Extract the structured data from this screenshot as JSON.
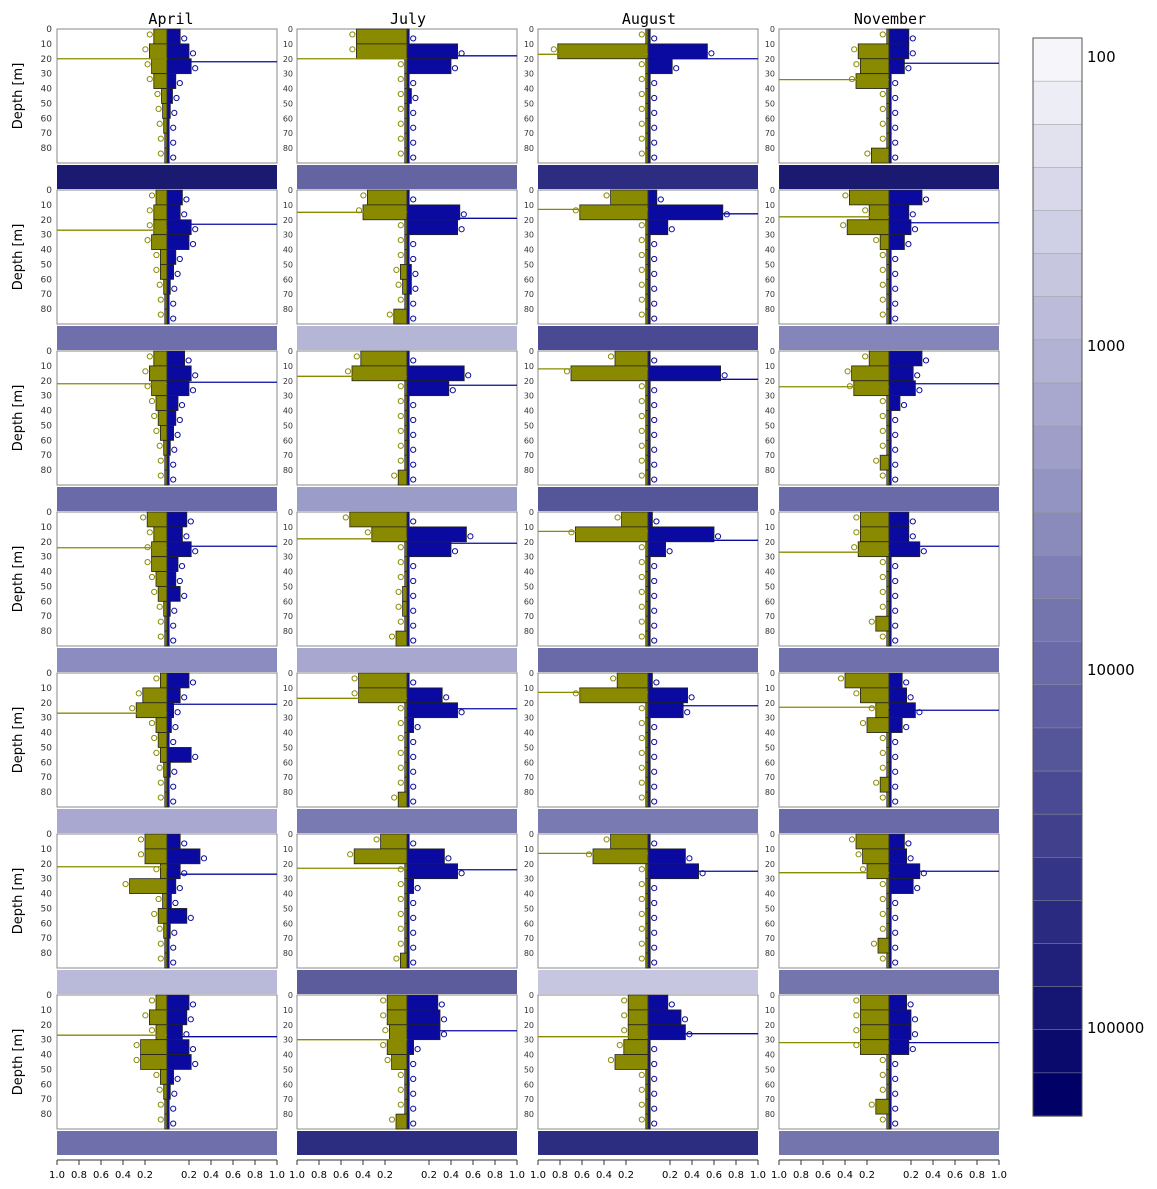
{
  "chart_data": {
    "type": "bar",
    "layout": "7 rows x 4 columns of mirrored depth-profile bar panels, each with a colour strip beneath",
    "columns": [
      "April",
      "July",
      "August",
      "November"
    ],
    "ylabel": "Depth [m]",
    "depth_ticks": [
      "0",
      "10",
      "20",
      "30",
      "40",
      "50",
      "60",
      "70",
      "80"
    ],
    "depth_range": [
      0,
      90
    ],
    "x_ticks": [
      "1.0",
      "0.8",
      "0.6",
      "0.4",
      "0.2",
      "0.2",
      "0.4",
      "0.6",
      "0.8",
      "1.0"
    ],
    "x_range": [
      -1.0,
      1.0
    ],
    "depth_bins": [
      0,
      10,
      20,
      30,
      40,
      50,
      60,
      70,
      80
    ],
    "series_colors": {
      "left": "#8a8a00",
      "right": "#0a0aa0"
    },
    "colorbar": {
      "labels": [
        "100",
        "1000",
        "10000",
        "100000"
      ],
      "scale": "log",
      "colors": [
        "#f6f6fa",
        "#ededf5",
        "#e2e2ef",
        "#d8d8ea",
        "#cfcfe5",
        "#c6c6df",
        "#bcbcda",
        "#b2b2d4",
        "#a8a8ce",
        "#9e9ec8",
        "#9494c2",
        "#8a8abb",
        "#7f7fb5",
        "#7575ae",
        "#6a6aa8",
        "#5f5fa1",
        "#55559a",
        "#4a4a94",
        "#40408d",
        "#353587",
        "#2a2a80",
        "#20207a",
        "#151573",
        "#0a0a6c",
        "#000066"
      ]
    },
    "panels": [
      [
        {
          "left": [
            0.12,
            0.16,
            0.14,
            0.12,
            0.05,
            0.04,
            0.03,
            0.02,
            0.02
          ],
          "right": [
            0.12,
            0.2,
            0.22,
            0.08,
            0.05,
            0.03,
            0.02,
            0.02,
            0.02
          ],
          "left_line": 20,
          "right_line": 22,
          "strip": "#1a1a70"
        },
        {
          "left": [
            0.1,
            0.12,
            0.12,
            0.14,
            0.06,
            0.06,
            0.03,
            0.02,
            0.02
          ],
          "right": [
            0.14,
            0.12,
            0.22,
            0.2,
            0.08,
            0.06,
            0.03,
            0.02,
            0.02
          ],
          "left_line": 27,
          "right_line": 23,
          "strip": "#6f6fac"
        },
        {
          "left": [
            0.12,
            0.16,
            0.14,
            0.1,
            0.08,
            0.06,
            0.03,
            0.02,
            0.02
          ],
          "right": [
            0.16,
            0.22,
            0.2,
            0.1,
            0.08,
            0.06,
            0.03,
            0.02,
            0.02
          ],
          "left_line": 22,
          "right_line": 21,
          "strip": "#6a6aa8"
        },
        {
          "left": [
            0.18,
            0.12,
            0.14,
            0.14,
            0.1,
            0.08,
            0.03,
            0.02,
            0.02
          ],
          "right": [
            0.18,
            0.14,
            0.22,
            0.1,
            0.08,
            0.12,
            0.03,
            0.02,
            0.02
          ],
          "left_line": 24,
          "right_line": 23,
          "strip": "#8c8cc0"
        },
        {
          "left": [
            0.06,
            0.22,
            0.28,
            0.1,
            0.08,
            0.06,
            0.03,
            0.02,
            0.02
          ],
          "right": [
            0.2,
            0.12,
            0.06,
            0.04,
            0.02,
            0.22,
            0.03,
            0.02,
            0.02
          ],
          "left_line": 27,
          "right_line": 21,
          "strip": "#a8a8d0"
        },
        {
          "left": [
            0.2,
            0.2,
            0.06,
            0.34,
            0.04,
            0.08,
            0.03,
            0.02,
            0.02
          ],
          "right": [
            0.12,
            0.3,
            0.12,
            0.08,
            0.04,
            0.18,
            0.03,
            0.02,
            0.02
          ],
          "left_line": 22,
          "right_line": 27,
          "strip": "#b9b9da"
        },
        {
          "left": [
            0.1,
            0.16,
            0.1,
            0.24,
            0.24,
            0.06,
            0.03,
            0.02,
            0.02
          ],
          "right": [
            0.2,
            0.18,
            0.14,
            0.2,
            0.22,
            0.06,
            0.03,
            0.02,
            0.02
          ],
          "left_line": 27,
          "right_line": 28,
          "strip": "#6f6fac"
        }
      ],
      [
        {
          "left": [
            0.46,
            0.46,
            0.02,
            0.02,
            0.02,
            0.02,
            0.02,
            0.02,
            0.02
          ],
          "right": [
            0.02,
            0.46,
            0.4,
            0.02,
            0.04,
            0.02,
            0.02,
            0.02,
            0.02
          ],
          "left_line": 20,
          "right_line": 18,
          "strip": "#6464a3"
        },
        {
          "left": [
            0.36,
            0.4,
            0.02,
            0.02,
            0.02,
            0.06,
            0.04,
            0.02,
            0.12
          ],
          "right": [
            0.02,
            0.48,
            0.46,
            0.02,
            0.02,
            0.04,
            0.04,
            0.02,
            0.02
          ],
          "left_line": 15,
          "right_line": 19,
          "strip": "#b5b5d6"
        },
        {
          "left": [
            0.42,
            0.5,
            0.02,
            0.02,
            0.02,
            0.02,
            0.02,
            0.02,
            0.08
          ],
          "right": [
            0.02,
            0.52,
            0.38,
            0.02,
            0.02,
            0.02,
            0.02,
            0.02,
            0.02
          ],
          "left_line": 17,
          "right_line": 23,
          "strip": "#9c9cc8"
        },
        {
          "left": [
            0.52,
            0.32,
            0.02,
            0.02,
            0.02,
            0.04,
            0.04,
            0.02,
            0.1
          ],
          "right": [
            0.02,
            0.54,
            0.4,
            0.02,
            0.02,
            0.02,
            0.02,
            0.02,
            0.02
          ],
          "left_line": 18,
          "right_line": 21,
          "strip": "#a7a7cf"
        },
        {
          "left": [
            0.44,
            0.44,
            0.02,
            0.02,
            0.02,
            0.02,
            0.02,
            0.02,
            0.08
          ],
          "right": [
            0.02,
            0.32,
            0.46,
            0.06,
            0.02,
            0.02,
            0.02,
            0.02,
            0.02
          ],
          "left_line": 17,
          "right_line": 24,
          "strip": "#7a7ab2"
        },
        {
          "left": [
            0.24,
            0.48,
            0.02,
            0.02,
            0.02,
            0.02,
            0.02,
            0.02,
            0.06
          ],
          "right": [
            0.02,
            0.34,
            0.46,
            0.06,
            0.02,
            0.02,
            0.02,
            0.02,
            0.02
          ],
          "left_line": 23,
          "right_line": 24,
          "strip": "#5c5c9d"
        },
        {
          "left": [
            0.18,
            0.18,
            0.16,
            0.18,
            0.14,
            0.02,
            0.02,
            0.02,
            0.1
          ],
          "right": [
            0.28,
            0.3,
            0.3,
            0.06,
            0.02,
            0.02,
            0.02,
            0.02,
            0.02
          ],
          "left_line": 30,
          "right_line": 24,
          "strip": "#2c2c80"
        }
      ],
      [
        {
          "left": [
            0.02,
            0.82,
            0.02,
            0.02,
            0.02,
            0.02,
            0.02,
            0.02,
            0.02
          ],
          "right": [
            0.02,
            0.54,
            0.22,
            0.02,
            0.02,
            0.02,
            0.02,
            0.02,
            0.02
          ],
          "left_line": 17,
          "right_line": 20,
          "strip": "#2c2c80"
        },
        {
          "left": [
            0.34,
            0.62,
            0.02,
            0.02,
            0.02,
            0.02,
            0.02,
            0.02,
            0.02
          ],
          "right": [
            0.08,
            0.68,
            0.18,
            0.02,
            0.02,
            0.02,
            0.02,
            0.02,
            0.02
          ],
          "left_line": 13,
          "right_line": 16,
          "strip": "#4a4a94"
        },
        {
          "left": [
            0.3,
            0.7,
            0.02,
            0.02,
            0.02,
            0.02,
            0.02,
            0.02,
            0.02
          ],
          "right": [
            0.02,
            0.66,
            0.02,
            0.02,
            0.02,
            0.02,
            0.02,
            0.02,
            0.02
          ],
          "left_line": 12,
          "right_line": 19,
          "strip": "#55559a"
        },
        {
          "left": [
            0.24,
            0.66,
            0.02,
            0.02,
            0.02,
            0.02,
            0.02,
            0.02,
            0.02
          ],
          "right": [
            0.04,
            0.6,
            0.16,
            0.02,
            0.02,
            0.02,
            0.02,
            0.02,
            0.02
          ],
          "left_line": 13,
          "right_line": 19,
          "strip": "#6a6aa8"
        },
        {
          "left": [
            0.28,
            0.62,
            0.02,
            0.02,
            0.02,
            0.02,
            0.02,
            0.02,
            0.02
          ],
          "right": [
            0.04,
            0.36,
            0.32,
            0.02,
            0.02,
            0.02,
            0.02,
            0.02,
            0.02
          ],
          "left_line": 13,
          "right_line": 22,
          "strip": "#7a7ab2"
        },
        {
          "left": [
            0.34,
            0.5,
            0.02,
            0.02,
            0.02,
            0.02,
            0.02,
            0.02,
            0.02
          ],
          "right": [
            0.02,
            0.34,
            0.46,
            0.02,
            0.02,
            0.02,
            0.02,
            0.02,
            0.02
          ],
          "left_line": 13,
          "right_line": 25,
          "strip": "#c6c6e0"
        },
        {
          "left": [
            0.18,
            0.18,
            0.18,
            0.22,
            0.3,
            0.02,
            0.02,
            0.02,
            0.02
          ],
          "right": [
            0.18,
            0.3,
            0.34,
            0.02,
            0.02,
            0.02,
            0.02,
            0.02,
            0.02
          ],
          "left_line": 28,
          "right_line": 26,
          "strip": "#2c2c80"
        }
      ],
      [
        {
          "left": [
            0.02,
            0.28,
            0.26,
            0.3,
            0.02,
            0.02,
            0.02,
            0.02,
            0.16
          ],
          "right": [
            0.18,
            0.18,
            0.14,
            0.02,
            0.02,
            0.02,
            0.02,
            0.02,
            0.02
          ],
          "left_line": 34,
          "right_line": 23,
          "strip": "#1a1a70"
        },
        {
          "left": [
            0.36,
            0.18,
            0.38,
            0.08,
            0.02,
            0.02,
            0.02,
            0.02,
            0.02
          ],
          "right": [
            0.3,
            0.18,
            0.2,
            0.14,
            0.02,
            0.02,
            0.02,
            0.02,
            0.02
          ],
          "left_line": 18,
          "right_line": 22,
          "strip": "#8585ba"
        },
        {
          "left": [
            0.18,
            0.34,
            0.32,
            0.02,
            0.02,
            0.02,
            0.02,
            0.08,
            0.02
          ],
          "right": [
            0.3,
            0.22,
            0.24,
            0.1,
            0.02,
            0.02,
            0.02,
            0.02,
            0.02
          ],
          "left_line": 24,
          "right_line": 22,
          "strip": "#6a6aa8"
        },
        {
          "left": [
            0.26,
            0.26,
            0.28,
            0.02,
            0.02,
            0.02,
            0.02,
            0.12,
            0.02
          ],
          "right": [
            0.18,
            0.18,
            0.28,
            0.02,
            0.02,
            0.02,
            0.02,
            0.02,
            0.02
          ],
          "left_line": 27,
          "right_line": 23,
          "strip": "#7070ad"
        },
        {
          "left": [
            0.4,
            0.26,
            0.12,
            0.2,
            0.02,
            0.02,
            0.02,
            0.08,
            0.02
          ],
          "right": [
            0.12,
            0.16,
            0.24,
            0.12,
            0.02,
            0.02,
            0.02,
            0.02,
            0.02
          ],
          "left_line": 23,
          "right_line": 25,
          "strip": "#6a6aa8"
        },
        {
          "left": [
            0.3,
            0.24,
            0.2,
            0.02,
            0.02,
            0.02,
            0.02,
            0.1,
            0.02
          ],
          "right": [
            0.14,
            0.16,
            0.28,
            0.22,
            0.02,
            0.02,
            0.02,
            0.02,
            0.02
          ],
          "left_line": 26,
          "right_line": 25,
          "strip": "#7575ae"
        },
        {
          "left": [
            0.26,
            0.26,
            0.26,
            0.26,
            0.02,
            0.02,
            0.02,
            0.12,
            0.02
          ],
          "right": [
            0.16,
            0.2,
            0.2,
            0.18,
            0.02,
            0.02,
            0.02,
            0.02,
            0.02
          ],
          "left_line": 32,
          "right_line": 32,
          "strip": "#7575ae"
        }
      ]
    ]
  }
}
